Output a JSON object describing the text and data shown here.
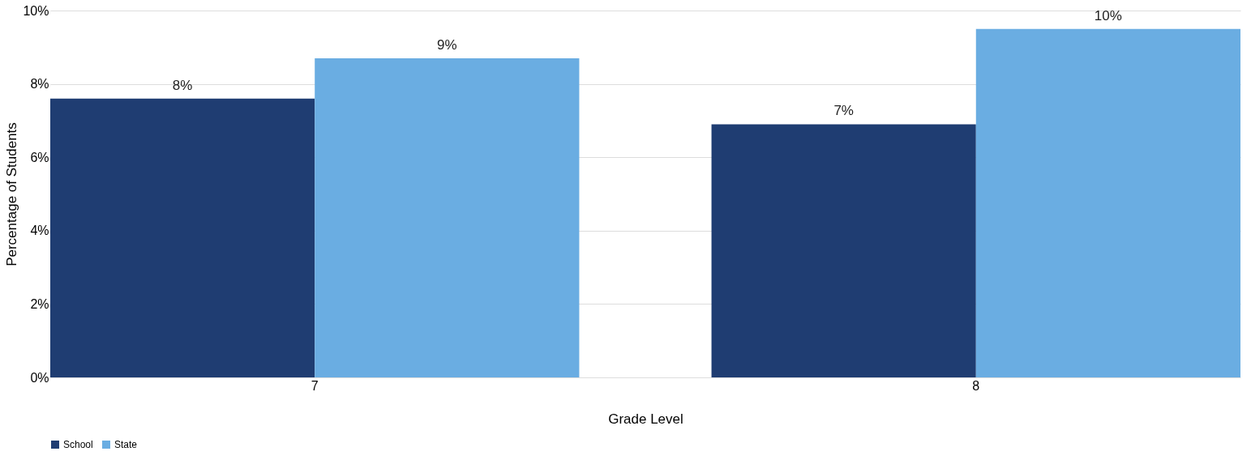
{
  "chart_data": {
    "type": "bar",
    "xlabel": "Grade Level",
    "ylabel": "Percentage of Students",
    "categories": [
      "7",
      "8"
    ],
    "series": [
      {
        "name": "School",
        "color": "#1f3d72",
        "values": [
          7.6,
          6.9
        ],
        "value_labels": [
          "8%",
          "7%"
        ]
      },
      {
        "name": "State",
        "color": "#6aade2",
        "values": [
          8.7,
          9.5
        ],
        "value_labels": [
          "9%",
          "10%"
        ]
      }
    ],
    "ylim": [
      0,
      10
    ],
    "yticks": [
      {
        "value": 0,
        "label": "0%"
      },
      {
        "value": 2,
        "label": "2%"
      },
      {
        "value": 4,
        "label": "4%"
      },
      {
        "value": 6,
        "label": "6%"
      },
      {
        "value": 8,
        "label": "8%"
      },
      {
        "value": 10,
        "label": "10%"
      }
    ],
    "grid": "y",
    "legend": "bottom"
  }
}
